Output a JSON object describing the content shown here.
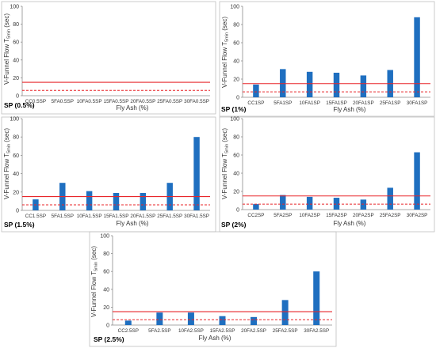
{
  "figure": {
    "y_axis_label": "V-Funnel Flow T",
    "y_axis_subscript": "5min",
    "y_axis_unit": "(sec)",
    "x_axis_label": "Fly Ash (%)"
  },
  "chart_data": [
    {
      "type": "bar",
      "panel_label": "SP (0.5%)",
      "categories": [
        "CC0.5SP",
        "5FA0.5SP",
        "10FA0.5SP",
        "15FA0.5SP",
        "20FA0.5SP",
        "25FA0.5SP",
        "30FA0.5SP"
      ],
      "values": [
        null,
        null,
        null,
        null,
        null,
        null,
        null
      ],
      "ylim": [
        0,
        100
      ],
      "yticks": [
        0,
        20,
        40,
        60,
        80,
        100
      ],
      "upper_limit_line": 15,
      "lower_limit_line": 6,
      "xlabel": "Fly Ash (%)",
      "ylabel": "V-Funnel Flow T5min (sec)",
      "grid": false
    },
    {
      "type": "bar",
      "panel_label": "SP (1%)",
      "categories": [
        "CC1SP",
        "5FA1SP",
        "10FA1SP",
        "15FA1SP",
        "20FA1SP",
        "25FA1SP",
        "30FA1SP"
      ],
      "values": [
        14,
        31,
        28,
        27,
        24,
        30,
        88
      ],
      "ylim": [
        0,
        100
      ],
      "yticks": [
        0,
        20,
        40,
        60,
        80,
        100
      ],
      "upper_limit_line": 15,
      "lower_limit_line": 6,
      "xlabel": "Fly Ash (%)",
      "ylabel": "V-Funnel Flow T5min (sec)",
      "grid": false
    },
    {
      "type": "bar",
      "panel_label": "SP (1.5%)",
      "categories": [
        "CC1.5SP",
        "5FA1.5SP",
        "10FA1.5SP",
        "15FA1.5SP",
        "20FA1.5SP",
        "25FA1.5SP",
        "30FA1.5SP"
      ],
      "values": [
        12,
        30,
        21,
        19,
        19,
        30,
        80
      ],
      "ylim": [
        0,
        100
      ],
      "yticks": [
        0,
        20,
        40,
        60,
        80,
        100
      ],
      "upper_limit_line": 15,
      "lower_limit_line": 6,
      "xlabel": "Fly Ash (%)",
      "ylabel": "V-Funnel Flow T5min (sec)",
      "grid": false
    },
    {
      "type": "bar",
      "panel_label": "SP (2%)",
      "categories": [
        "CC2SP",
        "5FA2SP",
        "10FA2SP",
        "15FA2SP",
        "20FA2SP",
        "25FA2SP",
        "30FA2SP"
      ],
      "values": [
        6,
        16,
        14,
        13,
        11,
        24,
        63
      ],
      "ylim": [
        0,
        100
      ],
      "yticks": [
        0,
        20,
        40,
        60,
        80,
        100
      ],
      "upper_limit_line": 15,
      "lower_limit_line": 6,
      "xlabel": "Fly Ash (%)",
      "ylabel": "V-Funnel Flow T5min (sec)",
      "grid": false
    },
    {
      "type": "bar",
      "panel_label": "SP (2.5%)",
      "categories": [
        "CC2.5SP",
        "5FA2.5SP",
        "10FA2.5SP",
        "15FA2.5SP",
        "20FA2.5SP",
        "25FA2.5SP",
        "30FA2.5SP"
      ],
      "values": [
        5,
        14,
        14,
        10,
        9,
        28,
        60
      ],
      "ylim": [
        0,
        100
      ],
      "yticks": [
        0,
        20,
        40,
        60,
        80,
        100
      ],
      "upper_limit_line": 15,
      "lower_limit_line": 6,
      "xlabel": "Fly Ash (%)",
      "ylabel": "V-Funnel Flow T5min (sec)",
      "grid": false
    }
  ],
  "colors": {
    "bar": "#1f6fc0",
    "limit_line": "#e8262a",
    "axis": "#8c8c8c",
    "frame": "#bfbfbf"
  }
}
